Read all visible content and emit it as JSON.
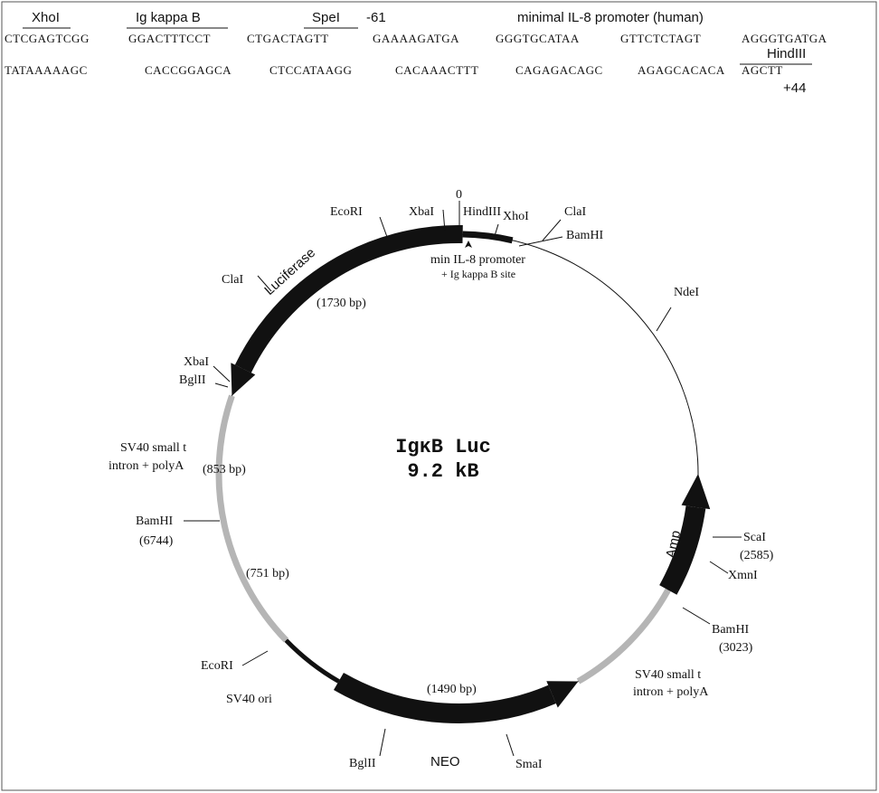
{
  "sequence": {
    "labels": [
      "XhoI",
      "Ig kappa B",
      "SpeI",
      "-61",
      "minimal IL-8 promoter (human)",
      "HindIII",
      "+44"
    ],
    "line1": [
      "CTCGAGTCGG",
      "GGACTTTCCT",
      "CTGACTAGTT",
      "GAAAAGATGA",
      "GGGTGCATAA",
      "GTTCTCTAGT",
      "AGGGTGATGA"
    ],
    "line2": [
      "TATAAAAAGC",
      "CACCGGAGCA",
      "CTCCATAAGG",
      "CACAAACTTT",
      "CAGAGACAGC",
      "AGAGCACACA",
      "AGCTT"
    ]
  },
  "map": {
    "title": "IgκB Luc",
    "size": "9.2 kB",
    "labels": [
      "0",
      "HindIII",
      "XbaI",
      "EcoRI",
      "XhoI",
      "ClaI",
      "BamHI",
      "min IL-8 promoter",
      "+ Ig kappa B site",
      "Luciferase",
      "(1730 bp)",
      "ClaI",
      "NdeI",
      "XbaI",
      "BglII",
      "SV40 small t",
      "intron + polyA",
      "(853 bp)",
      "BamHI",
      "(6744)",
      "(751 bp)",
      "Amp",
      "ScaI",
      "(2585)",
      "XmnI",
      "BamHI",
      "(3023)",
      "SV40 small t",
      "intron + polyA",
      "EcoRI",
      "SV40 ori",
      "(1490 bp)",
      "BglII",
      "NEO",
      "SmaI"
    ]
  }
}
